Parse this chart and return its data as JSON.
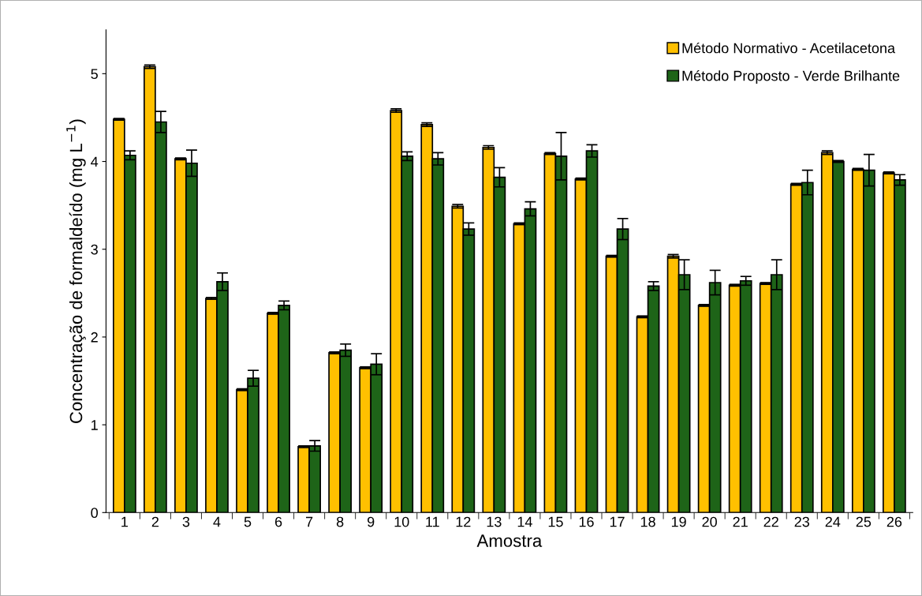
{
  "chart_data": {
    "type": "bar",
    "xlabel": "Amostra",
    "ylabel": "Concentração de formaldeído (mg L$^{−1}$)",
    "categories": [
      "1",
      "2",
      "3",
      "4",
      "5",
      "6",
      "7",
      "8",
      "9",
      "10",
      "11",
      "12",
      "13",
      "14",
      "15",
      "16",
      "17",
      "18",
      "19",
      "20",
      "21",
      "22",
      "23",
      "24",
      "25",
      "26"
    ],
    "series": [
      {
        "name": "Método Normativo - Acetilacetona",
        "color": "#ffc000",
        "values": [
          4.48,
          5.08,
          4.03,
          2.44,
          1.4,
          2.27,
          0.75,
          1.82,
          1.65,
          4.58,
          4.42,
          3.49,
          4.16,
          3.29,
          4.09,
          3.8,
          2.92,
          2.23,
          2.92,
          2.36,
          2.59,
          2.61,
          3.74,
          4.1,
          3.91,
          3.87
        ],
        "errors": [
          0.01,
          0.02,
          0.01,
          0.01,
          0.01,
          0.01,
          0.01,
          0.01,
          0.01,
          0.02,
          0.02,
          0.02,
          0.02,
          0.01,
          0.01,
          0.01,
          0.01,
          0.01,
          0.02,
          0.01,
          0.01,
          0.01,
          0.01,
          0.02,
          0.01,
          0.01
        ]
      },
      {
        "name": "Método Proposto - Verde Brilhante",
        "color": "#1e6418",
        "values": [
          4.07,
          4.45,
          3.98,
          2.63,
          1.53,
          2.36,
          0.76,
          1.85,
          1.69,
          4.06,
          4.03,
          3.23,
          3.82,
          3.46,
          4.06,
          4.12,
          3.23,
          2.58,
          2.71,
          2.62,
          2.64,
          2.71,
          3.76,
          4.0,
          3.9,
          3.79
        ],
        "errors": [
          0.05,
          0.12,
          0.15,
          0.1,
          0.09,
          0.05,
          0.06,
          0.07,
          0.12,
          0.05,
          0.07,
          0.07,
          0.11,
          0.08,
          0.27,
          0.07,
          0.12,
          0.05,
          0.17,
          0.14,
          0.05,
          0.17,
          0.14,
          0.01,
          0.18,
          0.06
        ]
      }
    ],
    "ylim": [
      0,
      5.5
    ],
    "yticks": [
      0,
      1,
      2,
      3,
      4,
      5
    ],
    "grid": false,
    "legend": "top right"
  }
}
